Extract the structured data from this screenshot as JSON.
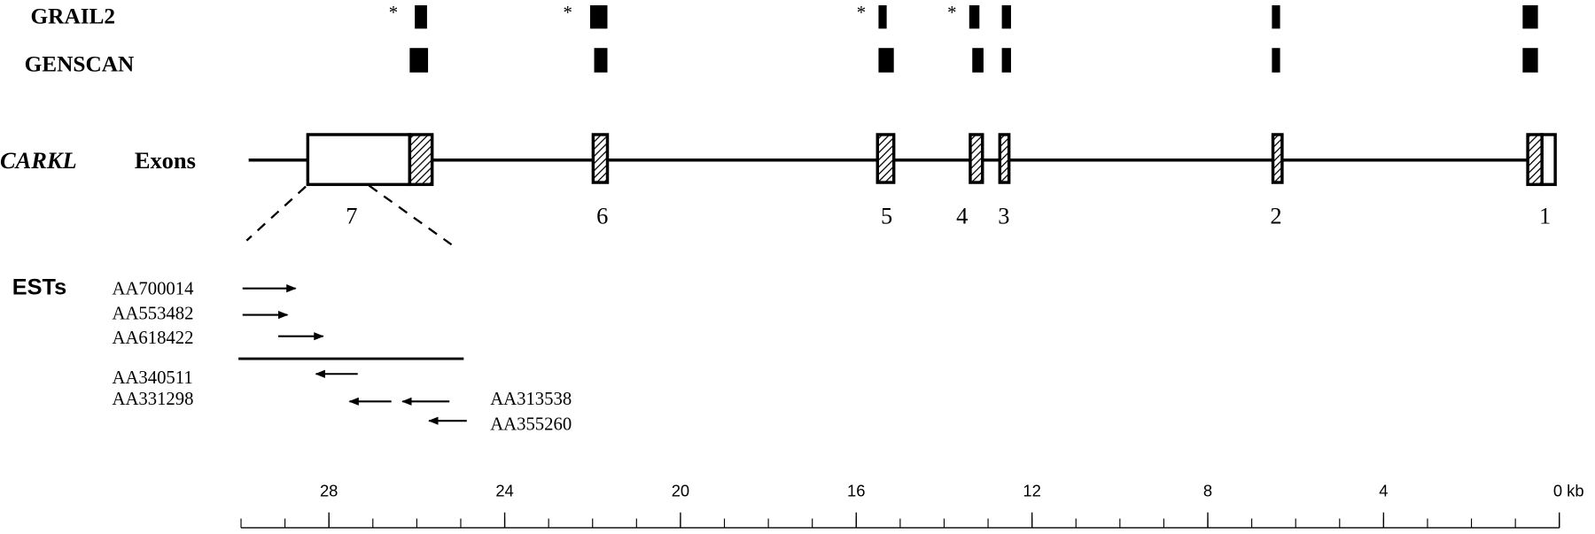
{
  "tracks": {
    "grail2": "GRAIL2",
    "genscan": "GENSCAN",
    "asterisk": "*"
  },
  "gene": {
    "name": "CARKL",
    "label": "Exons",
    "exons": [
      "7",
      "6",
      "5",
      "4",
      "3",
      "2",
      "1"
    ]
  },
  "ests": {
    "title": "ESTs",
    "names": [
      "AA700014",
      "AA553482",
      "AA618422",
      "AA340511",
      "AA331298",
      "AA313538",
      "AA355260"
    ]
  },
  "scale": {
    "range": [
      30,
      0
    ],
    "ticks": [
      28,
      24,
      20,
      16,
      12,
      8,
      4,
      {
        "value": 0,
        "label": "0 kb"
      }
    ]
  }
}
